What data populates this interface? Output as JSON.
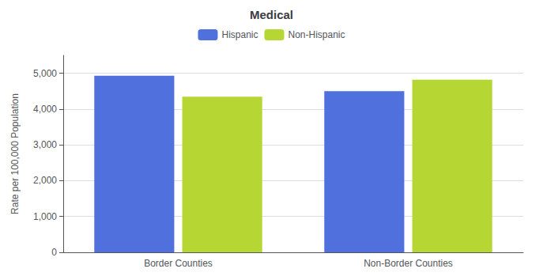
{
  "chart_data": {
    "type": "bar",
    "title": "Medical",
    "ylabel": "Rate per 100,000 Population",
    "categories": [
      "Border Counties",
      "Non-Border Counties"
    ],
    "series": [
      {
        "name": "Hispanic",
        "values": [
          4933,
          4498
        ]
      },
      {
        "name": "Non-Hispanic",
        "values": [
          4345,
          4822
        ]
      }
    ],
    "ylim": [
      0,
      5500
    ],
    "yticks": [
      {
        "value": 0,
        "label": "0"
      },
      {
        "value": 1000,
        "label": "1,000"
      },
      {
        "value": 2000,
        "label": "2,000"
      },
      {
        "value": 3000,
        "label": "3,000"
      },
      {
        "value": 4000,
        "label": "4,000"
      },
      {
        "value": 5000,
        "label": "5,000"
      }
    ],
    "grid": true,
    "legend": "top"
  }
}
